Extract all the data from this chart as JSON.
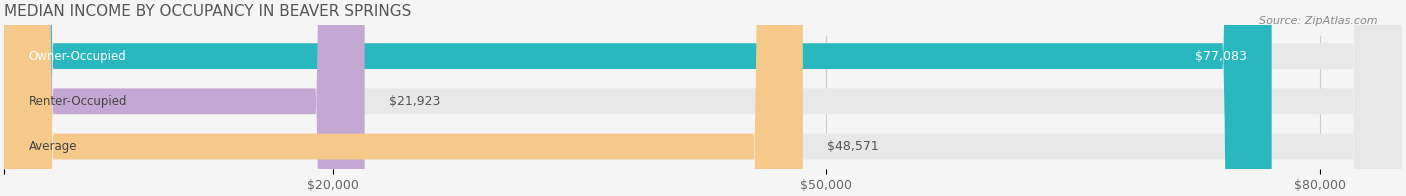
{
  "title": "MEDIAN INCOME BY OCCUPANCY IN BEAVER SPRINGS",
  "source": "Source: ZipAtlas.com",
  "categories": [
    "Owner-Occupied",
    "Renter-Occupied",
    "Average"
  ],
  "values": [
    77083,
    21923,
    48571
  ],
  "labels": [
    "$77,083",
    "$21,923",
    "$48,571"
  ],
  "bar_colors": [
    "#29b8c0",
    "#c4a8d4",
    "#f5c98a"
  ],
  "bar_bg_colors": [
    "#e8e8e8",
    "#e8e8e8",
    "#e8e8e8"
  ],
  "xlim": [
    0,
    85000
  ],
  "xticks": [
    0,
    20000,
    50000,
    80000
  ],
  "xticklabels": [
    "",
    "$20,000",
    "$50,000",
    "$80,000"
  ],
  "title_fontsize": 11,
  "source_fontsize": 8,
  "label_fontsize": 9,
  "category_fontsize": 8.5,
  "figsize": [
    14.06,
    1.96
  ],
  "dpi": 100
}
